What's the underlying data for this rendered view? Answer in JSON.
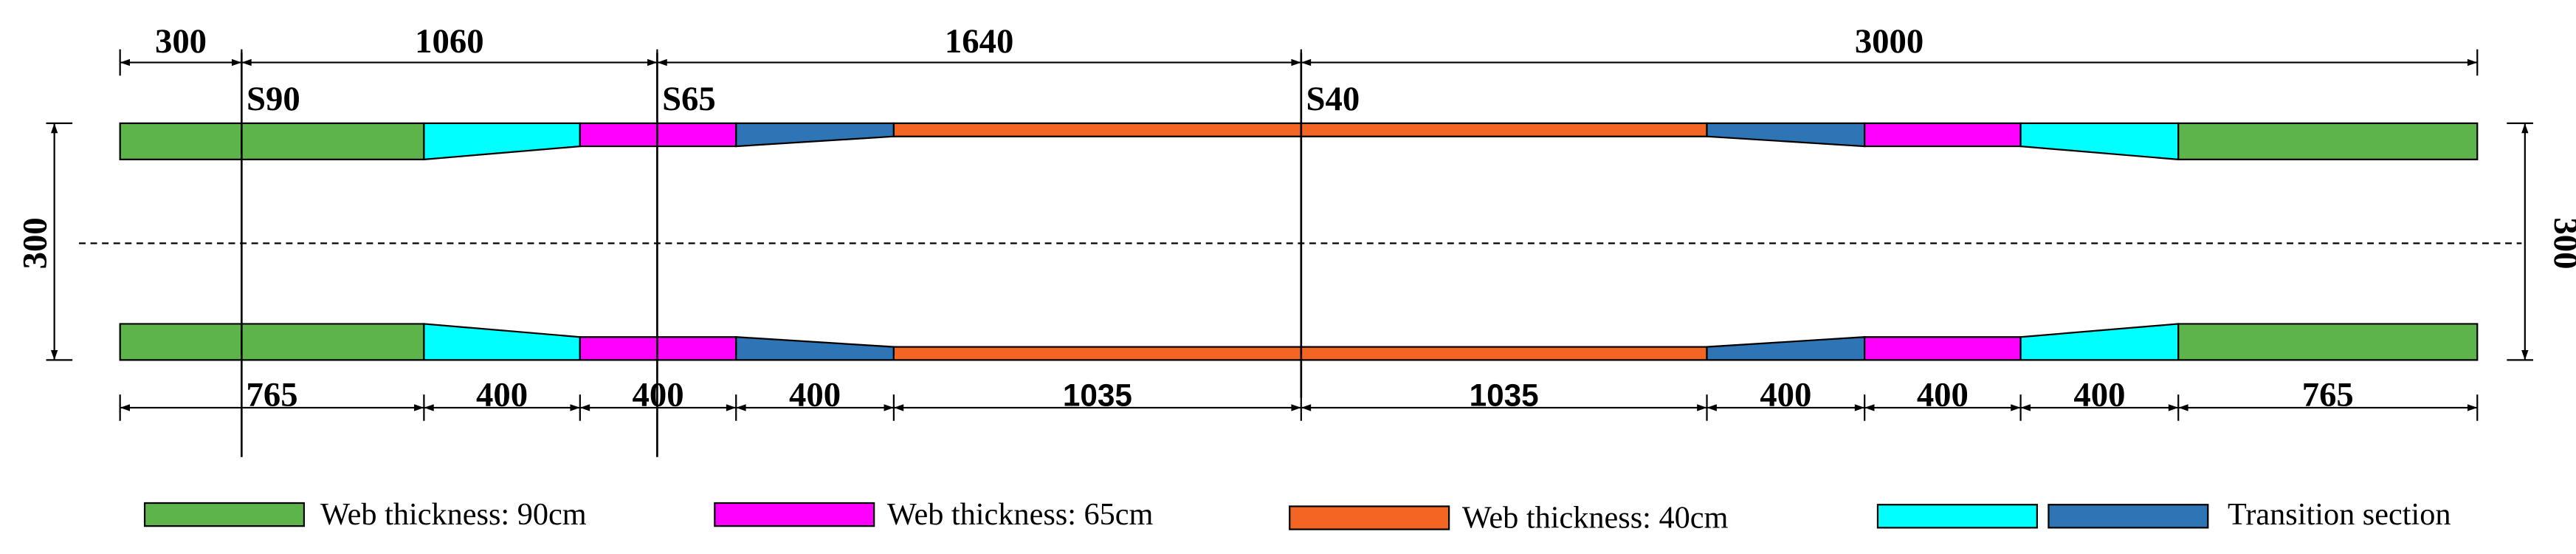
{
  "top_dimensions": [
    "300",
    "1060",
    "1640",
    "3000"
  ],
  "sections": [
    "S90",
    "S65",
    "S40"
  ],
  "side_dimensions": {
    "left": "300",
    "right": "300"
  },
  "bottom_dimensions": [
    "765",
    "400",
    "400",
    "400",
    "1035",
    "1035",
    "400",
    "400",
    "400",
    "765"
  ],
  "legend": [
    "Web thickness: 90cm",
    "Web thickness: 65cm",
    "Web thickness: 40cm",
    "Transition section"
  ]
}
